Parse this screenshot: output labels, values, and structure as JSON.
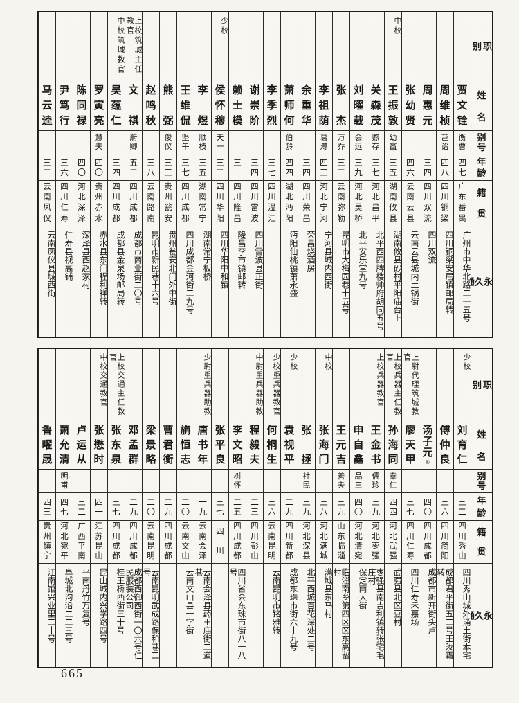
{
  "page": {
    "number": "665"
  },
  "row_headers": {
    "rank": "职别",
    "name": "姓名",
    "alias": "别号",
    "age": "年龄",
    "native": "籍贯",
    "address": "永久通讯处"
  },
  "tables": [
    {
      "id": "top",
      "people": [
        {
          "rank": "",
          "name": "贾文铨",
          "note": "",
          "alias": "衡曹",
          "age": "四七",
          "native": "广东番禺",
          "address": "广州市中华北路二一五号"
        },
        {
          "rank": "",
          "name": "周维桢",
          "note": "",
          "alias": "芑诒",
          "age": "四八",
          "native": "四川铜梁",
          "address": "四川铜梁安居镇邮局转"
        },
        {
          "rank": "",
          "name": "周惠元",
          "note": "",
          "alias": "",
          "age": "三四",
          "native": "四川双流",
          "address": "四川双流"
        },
        {
          "rank": "",
          "name": "张幼贤",
          "note": "",
          "alias": "",
          "age": "四六",
          "native": "云南云县",
          "address": "云南云县城内土锅街"
        },
        {
          "rank": "中校",
          "name": "王振敦",
          "note": "",
          "alias": "幼盫",
          "age": "三五",
          "native": "湖南攸县",
          "address": "湖南攸县砂村平阳庙台上"
        },
        {
          "rank": "",
          "name": "关森茂",
          "note": "",
          "alias": "煦存",
          "age": "三七",
          "native": "河北昌平",
          "address": "北平西四牌楼帅府胡同五号"
        },
        {
          "rank": "",
          "name": "刘曜载",
          "note": "",
          "alias": "会远",
          "age": "三九",
          "native": "河北吴桥",
          "address": "北平安乐堂九号"
        },
        {
          "rank": "",
          "name": "张杰",
          "note": "",
          "alias": "万乔",
          "age": "三二",
          "native": "云南弥勒",
          "address": "昆明市大梅园巷十五号"
        },
        {
          "rank": "",
          "name": "李祖荫",
          "note": "",
          "alias": "葛溥",
          "age": "四三",
          "native": "河北宁河",
          "address": "宁河县城内西街"
        },
        {
          "rank": "",
          "name": "余重华",
          "note": "",
          "alias": "",
          "age": "三四",
          "native": "四川荣昌",
          "address": "荣昌烧酒房"
        },
        {
          "rank": "",
          "name": "萧师何",
          "note": "",
          "alias": "伯龄",
          "age": "四四",
          "native": "湖北沔阳",
          "address": "沔阳仙桃镇萧永盛"
        },
        {
          "rank": "",
          "name": "李季烈",
          "note": "",
          "alias": "",
          "age": "三七",
          "native": "四川温江",
          "address": ""
        },
        {
          "rank": "",
          "name": "谢崇阶",
          "note": "",
          "alias": "",
          "age": "三四",
          "native": "四川雷波",
          "address": "四川雷波县正街"
        },
        {
          "rank": "",
          "name": "赖士模",
          "note": "",
          "alias": "",
          "age": "三一",
          "native": "四川隆昌",
          "address": "隆昌李市镇邮转"
        },
        {
          "rank": "少校",
          "name": "侯怀穆",
          "note": "",
          "alias": "天一",
          "age": "三二",
          "native": "四川华阳",
          "address": "四川华阳中和镇"
        },
        {
          "rank": "",
          "name": "李煜",
          "note": "",
          "alias": "顺枝",
          "age": "三五",
          "native": "湖南常宁",
          "address": "湖南常宁板桥"
        },
        {
          "rank": "",
          "name": "王维侃",
          "note": "",
          "alias": "坚午",
          "age": "三七",
          "native": "四川成都",
          "address": "四川成都金河街二九号"
        },
        {
          "rank": "",
          "name": "熊弼",
          "note": "",
          "alias": "俊仪",
          "age": "三三",
          "native": "贵州瓮安",
          "address": "贵州瓮安北门外中街"
        },
        {
          "rank": "",
          "name": "赵鸣秋",
          "note": "",
          "alias": "",
          "age": "三八",
          "native": "云南路南",
          "address": "昆明市新民巷十六号"
        },
        {
          "rank": "上校筑城主任教官",
          "name": "文祺",
          "note": "",
          "alias": "蔚卿",
          "age": "五二",
          "native": "四川成都",
          "address": "成都市商业街二〇号"
        },
        {
          "rank": "中校筑城教官",
          "name": "吴蕴仁",
          "note": "",
          "alias": "",
          "age": "三四",
          "native": "四川成都",
          "address": "成都县金泉场邮局转"
        },
        {
          "rank": "",
          "name": "罗寅亮",
          "note": "",
          "alias": "慧夫",
          "age": "四〇",
          "native": "贵州赤水",
          "address": "赤水县东门程利祥转"
        },
        {
          "rank": "",
          "name": "陈同禄",
          "note": "",
          "alias": "",
          "age": "四〇",
          "native": "河北深泽",
          "address": "深泽县西赵家村"
        },
        {
          "rank": "",
          "name": "尹笃行",
          "note": "",
          "alias": "",
          "age": "三六",
          "native": "四川仁寿",
          "address": "仁寿县视高铺"
        },
        {
          "rank": "",
          "name": "马云逵",
          "note": "",
          "alias": "",
          "age": "三二",
          "native": "云南凤仪",
          "address": "云南凤仪县城西街"
        }
      ]
    },
    {
      "id": "bottom",
      "people": [
        {
          "rank": "少校",
          "name": "刘育仁",
          "note": "",
          "alias": "",
          "age": "三二",
          "native": "四川秀山",
          "address": "四川秀山城外涌土街本宅"
        },
        {
          "rank": "",
          "name": "傅仲良",
          "note": "",
          "alias": "",
          "age": "三六",
          "native": "四川简阳",
          "address": "成都君平街五二号王汝霜转"
        },
        {
          "rank": "",
          "name": "汤子元",
          "note": "⑥",
          "alias": "",
          "age": "四〇",
          "native": "四川成都",
          "address": "成都市新开街头卢"
        },
        {
          "rank": "上尉代理筑城教官",
          "name": "廖天甲",
          "note": "",
          "alias": "",
          "age": "三七",
          "native": "四川仁寿",
          "address": "四川仁寿禾嘉场"
        },
        {
          "rank": "上校兵器主任教官",
          "name": "孙海同",
          "note": "",
          "alias": "奉仁",
          "age": "四四",
          "native": "河北武强",
          "address": "武强县北区豆村"
        },
        {
          "rank": "上校兵器教官",
          "name": "王金书",
          "note": "",
          "alias": "儒珍",
          "age": "三九",
          "native": "河北枣强",
          "address": "枣强县南吉利镇转张宅毛庄村"
        },
        {
          "rank": "",
          "name": "申自鑫",
          "note": "",
          "alias": "品三",
          "age": "四〇",
          "native": "河北清宛",
          "address": "保定南大街"
        },
        {
          "rank": "",
          "name": "王元吉",
          "note": "",
          "alias": "善夫",
          "age": "三九",
          "native": "山东临淄",
          "address": "临淄南乡第四区区东高留村"
        },
        {
          "rank": "中校",
          "name": "张海门",
          "note": "",
          "alias": "",
          "age": "三八",
          "native": "河北满城",
          "address": "满城县东马村"
        },
        {
          "rank": "",
          "name": "张拯",
          "note": "",
          "alias": "社民",
          "age": "三九",
          "native": "河北深县",
          "address": "北平西城百花深处二号"
        },
        {
          "rank": "少校",
          "name": "袁视平",
          "note": "",
          "alias": "",
          "age": "二九",
          "native": "四川新都",
          "address": "成都东珠市街六十九号"
        },
        {
          "rank": "少校重兵器教官",
          "name": "何桐生",
          "note": "",
          "alias": "",
          "age": "三六",
          "native": "云南昆明",
          "address": "云南昆明市铭雅转"
        },
        {
          "rank": "中尉重兵器助教",
          "name": "程毅夫",
          "note": "",
          "alias": "",
          "age": "二三",
          "native": "四川彭山",
          "address": ""
        },
        {
          "rank": "",
          "name": "李文昭",
          "note": "",
          "alias": "树怀",
          "age": "二五",
          "native": "四川成都",
          "address": "四川省会东珠市街八十八号"
        },
        {
          "rank": "",
          "name": "张平良",
          "note": "",
          "alias": "",
          "age": "三七",
          "native": "四川",
          "address": ""
        },
        {
          "rank": "少尉重兵器助教",
          "name": "唐书年",
          "note": "",
          "alias": "",
          "age": "一九",
          "native": "云南会泽",
          "address": "云南会泽县药王庙街二道巷"
        },
        {
          "rank": "",
          "name": "旃恒志",
          "note": "",
          "alias": "",
          "age": "二〇",
          "native": "云南文山",
          "address": "云南文山县十字街"
        },
        {
          "rank": "",
          "name": "曹君衡",
          "note": "",
          "alias": "",
          "age": "二九",
          "native": "四川成都",
          "address": ""
        },
        {
          "rank": "",
          "name": "梁景略",
          "note": "",
          "alias": "",
          "age": "二〇",
          "native": "云南昆明",
          "address": "云南昆明武成路保和巷二号"
        },
        {
          "rank": "",
          "name": "邓孟群",
          "note": "",
          "alias": "",
          "age": "二九",
          "native": "四川成都",
          "address": "成都西御西街一〇六号仁民服装公司"
        },
        {
          "rank": "上校交通主任教官",
          "name": "张东泉",
          "note": "",
          "alias": "",
          "age": "三七",
          "native": "四川成都",
          "address": "桂王桥西街三十号"
        },
        {
          "rank": "中校交通教官",
          "name": "张懋时",
          "note": "",
          "alias": "",
          "age": "四一",
          "native": "江苏昆山",
          "address": "昆山城内兴学路四号"
        },
        {
          "rank": "",
          "name": "卢运从",
          "note": "",
          "alias": "",
          "age": "三二",
          "native": "广西平南",
          "address": "平南丹竹万复号"
        },
        {
          "rank": "",
          "name": "萧允清",
          "note": "",
          "alias": "明甫",
          "age": "四七",
          "native": "河北宛平",
          "address": "阜城北沟沿二二三号"
        },
        {
          "rank": "",
          "name": "鲁曜晟",
          "note": "",
          "alias": "",
          "age": "四三",
          "native": "贵州镇宁",
          "address": "江南馆兴业里二十号"
        }
      ]
    }
  ]
}
